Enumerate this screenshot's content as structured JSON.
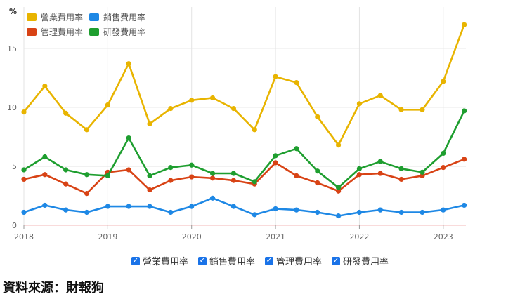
{
  "chart_data": {
    "type": "line",
    "ylabel": "%",
    "ylim": [
      0,
      18.5
    ],
    "yticks": [
      0,
      5,
      10,
      15
    ],
    "xlim": [
      2018,
      2023.27
    ],
    "x_tick_labels": [
      "2018",
      "2019",
      "2020",
      "2021",
      "2022",
      "2023"
    ],
    "x": [
      2018,
      2018.25,
      2018.5,
      2018.75,
      2019,
      2019.25,
      2019.5,
      2019.75,
      2020,
      2020.25,
      2020.5,
      2020.75,
      2021,
      2021.25,
      2021.5,
      2021.75,
      2022,
      2022.25,
      2022.5,
      2022.75,
      2023,
      2023.25
    ],
    "grid": true,
    "legend_position": "top-left",
    "series": [
      {
        "name": "營業費用率",
        "color": "#e8b400",
        "values": [
          9.6,
          11.8,
          9.5,
          8.1,
          10.2,
          13.7,
          8.6,
          9.9,
          10.6,
          10.8,
          9.9,
          8.1,
          12.6,
          12.1,
          9.2,
          6.8,
          10.3,
          11.0,
          9.8,
          9.8,
          12.2,
          17.0
        ]
      },
      {
        "name": "銷售費用率",
        "color": "#1e88e5",
        "values": [
          1.1,
          1.7,
          1.3,
          1.1,
          1.6,
          1.6,
          1.6,
          1.1,
          1.6,
          2.3,
          1.6,
          0.9,
          1.4,
          1.3,
          1.1,
          0.8,
          1.1,
          1.3,
          1.1,
          1.1,
          1.3,
          1.7
        ]
      },
      {
        "name": "管理費用率",
        "color": "#d84315",
        "values": [
          3.9,
          4.3,
          3.5,
          2.7,
          4.5,
          4.7,
          3.0,
          3.8,
          4.1,
          4.0,
          3.8,
          3.5,
          5.3,
          4.2,
          3.6,
          2.9,
          4.3,
          4.4,
          3.9,
          4.2,
          4.9,
          5.6
        ]
      },
      {
        "name": "研發費用率",
        "color": "#1e9e2f",
        "values": [
          4.7,
          5.8,
          4.7,
          4.3,
          4.2,
          7.4,
          4.2,
          4.9,
          5.1,
          4.4,
          4.4,
          3.7,
          5.9,
          6.5,
          4.6,
          3.2,
          4.8,
          5.4,
          4.8,
          4.5,
          6.1,
          9.7
        ]
      }
    ]
  },
  "legend_toggles": [
    {
      "label": "營業費用率",
      "checked": true
    },
    {
      "label": "銷售費用率",
      "checked": true
    },
    {
      "label": "管理費用率",
      "checked": true
    },
    {
      "label": "研發費用率",
      "checked": true
    }
  ],
  "source_text": "資料來源：財報狗"
}
